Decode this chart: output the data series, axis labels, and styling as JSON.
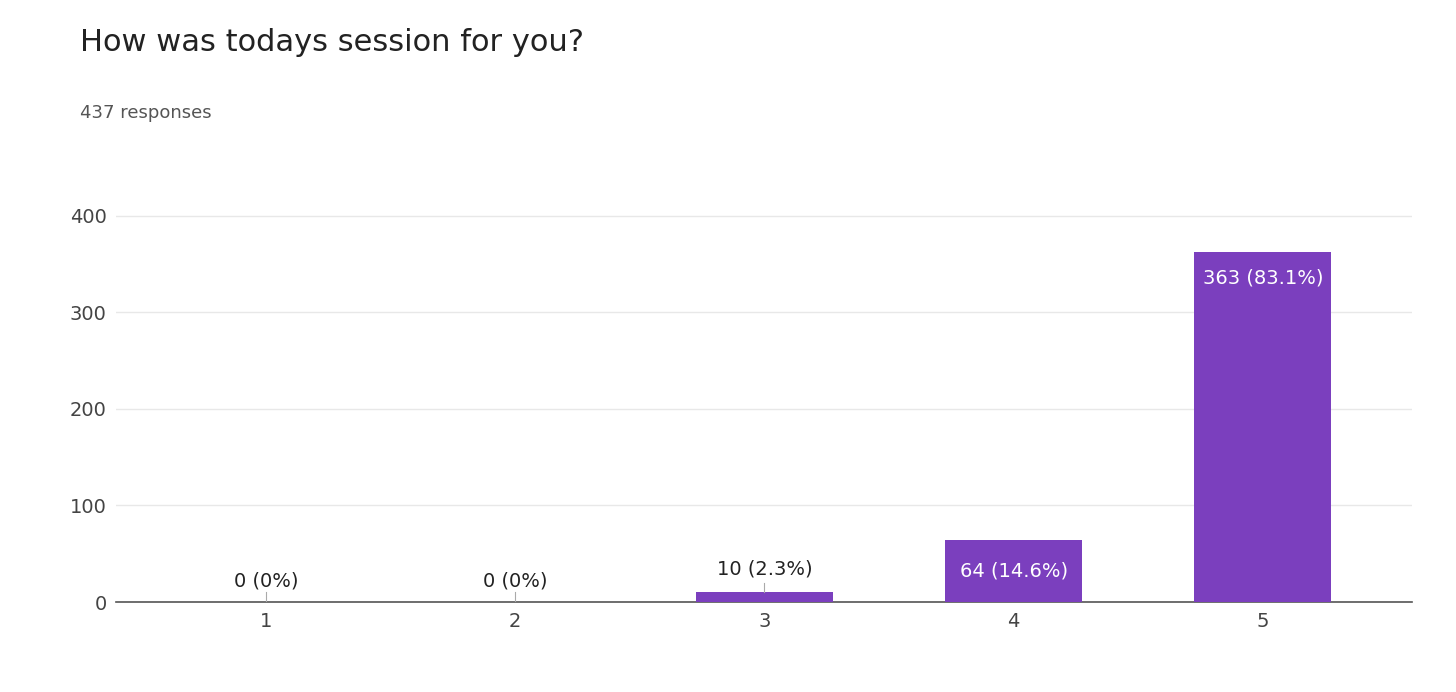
{
  "title": "How was todays session for you?",
  "subtitle": "437 responses",
  "categories": [
    "1",
    "2",
    "3",
    "4",
    "5"
  ],
  "values": [
    0,
    0,
    10,
    64,
    363
  ],
  "labels": [
    "0 (0%)",
    "0 (0%)",
    "10 (2.3%)",
    "64 (14.6%)",
    "363 (83.1%)"
  ],
  "bar_color": "#7B3FBE",
  "label_color_inside": "#ffffff",
  "label_color_outside": "#222222",
  "background_color": "#ffffff",
  "grid_color": "#e8e8e8",
  "ylim": [
    0,
    430
  ],
  "yticks": [
    0,
    100,
    200,
    300,
    400
  ],
  "title_fontsize": 22,
  "subtitle_fontsize": 13,
  "tick_fontsize": 14,
  "label_fontsize": 14,
  "bar_width": 0.55
}
